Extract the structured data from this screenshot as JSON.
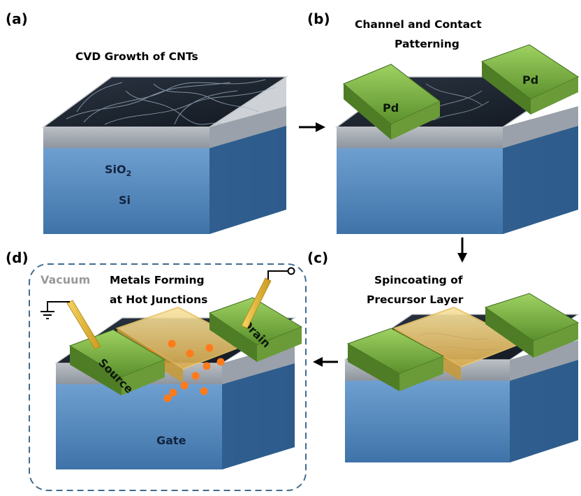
{
  "panels": {
    "a": {
      "tag": "(a)",
      "title": "CVD Growth of CNTs",
      "label_sio2_main": "SiO",
      "label_sio2_sub": "2",
      "label_si": "Si"
    },
    "b": {
      "tag": "(b)",
      "title_line1": "Channel and Contact",
      "title_line2": "Patterning",
      "pad_left": "Pd",
      "pad_right": "Pd"
    },
    "c": {
      "tag": "(c)",
      "title_line1": "Spincoating of",
      "title_line2": "Precursor Layer"
    },
    "d": {
      "tag": "(d)",
      "title_line1": "Metals Forming",
      "title_line2": "at Hot Junctions",
      "vacuum": "Vacuum",
      "source": "Source",
      "drain": "Drain",
      "gate": "Gate"
    }
  },
  "colors": {
    "si_top": "#7ea9d1",
    "si_front": "#4a7fb3",
    "si_side": "#2f5f8f",
    "oxide": "#cfd3d8",
    "cnt_surface": "#1c2530",
    "pd_green": "#7fb24a",
    "pd_dark": "#4f7d26",
    "precursor": "#f2d27a",
    "nanoparticle": "#ff7a1a",
    "dashed_box": "#3f6b8e",
    "probe": "#f2c840"
  }
}
